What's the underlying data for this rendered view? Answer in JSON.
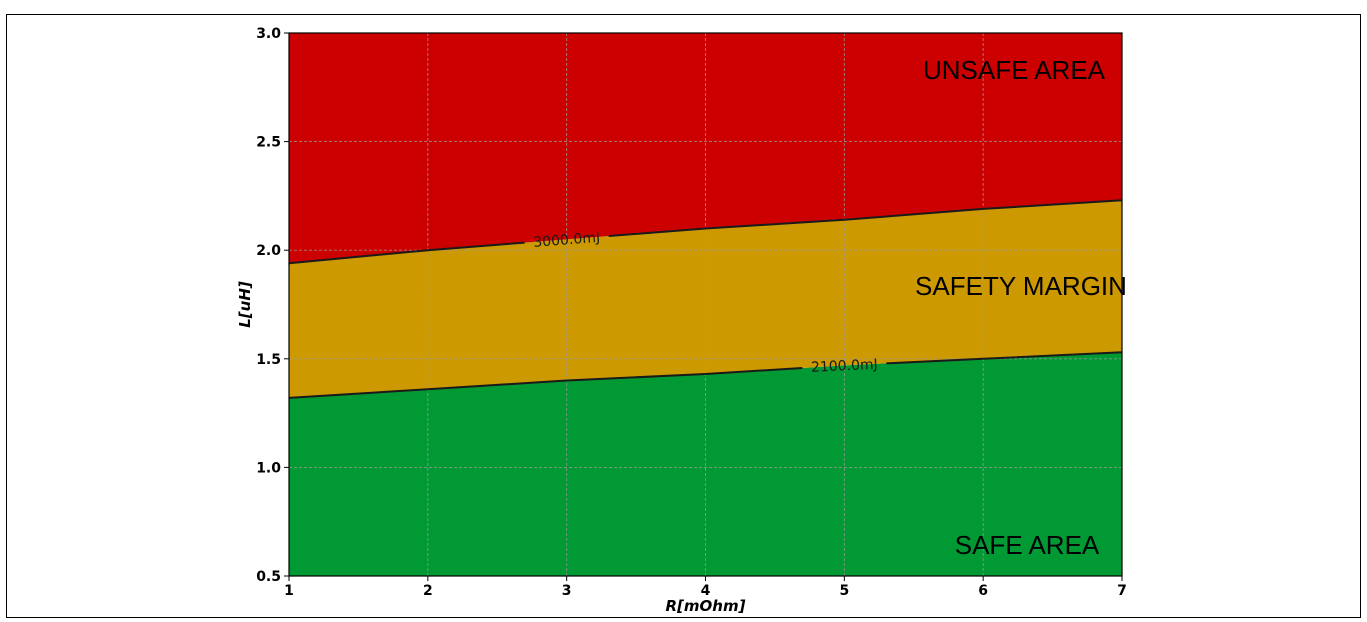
{
  "chart_data": {
    "type": "area",
    "title": "",
    "xlabel": "R[mOhm]",
    "ylabel": "L[uH]",
    "xlim": [
      1,
      7
    ],
    "ylim": [
      0.5,
      3.0
    ],
    "xticks": [
      1,
      2,
      3,
      4,
      5,
      6,
      7
    ],
    "yticks": [
      0.5,
      1.0,
      1.5,
      2.0,
      2.5,
      3.0
    ],
    "xtick_labels": [
      "1",
      "2",
      "3",
      "4",
      "5",
      "6",
      "7"
    ],
    "ytick_labels": [
      "0.5",
      "1.0",
      "1.5",
      "2.0",
      "2.5",
      "3.0"
    ],
    "grid": true,
    "contours": [
      {
        "label": "2100.0mJ",
        "x": [
          1,
          2,
          3,
          4,
          5,
          6,
          7
        ],
        "y": [
          1.32,
          1.36,
          1.4,
          1.43,
          1.47,
          1.5,
          1.53
        ],
        "label_at_x": 5.0
      },
      {
        "label": "3000.0mJ",
        "x": [
          1,
          2,
          3,
          4,
          5,
          6,
          7
        ],
        "y": [
          1.94,
          2.0,
          2.05,
          2.1,
          2.14,
          2.19,
          2.23
        ],
        "label_at_x": 3.0
      }
    ],
    "regions": [
      {
        "label": "SAFE AREA",
        "color": "#009933",
        "below_contour": 0
      },
      {
        "label": "SAFETY MARGIN",
        "color": "#cc9900",
        "between_contours": [
          0,
          1
        ]
      },
      {
        "label": "UNSAFE AREA",
        "color": "#cc0000",
        "above_contour": 1
      }
    ]
  }
}
